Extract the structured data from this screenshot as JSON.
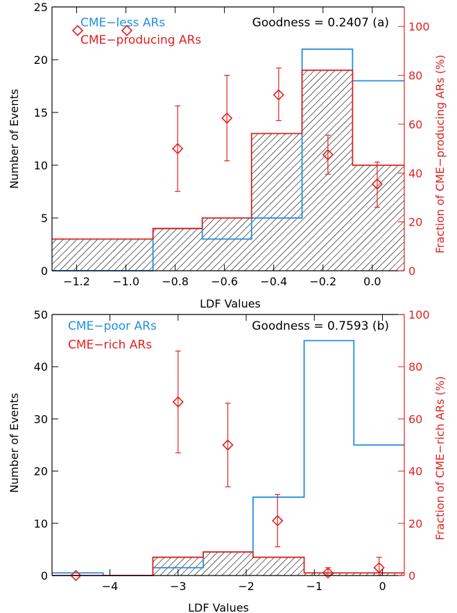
{
  "chart_data": [
    {
      "type": "bar",
      "panel_label": "(a)",
      "goodness_text": "Goodness = 0.2407 (a)",
      "xlabel": "LDF Values",
      "ylabel": "Number of Events",
      "y2label": "Fraction of CME−producing ARs (%)",
      "xlim": [
        -1.3,
        0.13
      ],
      "ylim": [
        0,
        25
      ],
      "y2lim": [
        0,
        108
      ],
      "xticks": [
        -1.2,
        -1.0,
        -0.8,
        -0.6,
        -0.4,
        -0.2,
        0.0
      ],
      "xtick_labels": [
        "−1.2",
        "−1.0",
        "−0.8",
        "−0.6",
        "−0.4",
        "−0.2",
        "0.0"
      ],
      "yticks": [
        0,
        5,
        10,
        15,
        20,
        25
      ],
      "y2ticks": [
        0,
        20,
        40,
        60,
        80,
        100
      ],
      "legend_placement": "top-left",
      "bin_edges": [
        -1.3,
        -0.89,
        -0.69,
        -0.49,
        -0.285,
        -0.08,
        0.13
      ],
      "series": [
        {
          "name": "CME−less ARs",
          "style": "step",
          "color": "#1f8fe0",
          "values": [
            0,
            4,
            3,
            5,
            21,
            18
          ]
        },
        {
          "name": "CME−producing ARs",
          "style": "step-hatched",
          "color": "#e02020",
          "values": [
            3,
            4,
            5,
            13,
            19,
            10
          ]
        },
        {
          "name": "Fraction",
          "style": "points",
          "axis": "right",
          "color": "#e02020",
          "x": [
            -0.79,
            -0.59,
            -0.38,
            -0.18,
            0.02
          ],
          "y": [
            50,
            62.5,
            72,
            47.5,
            35.5
          ],
          "err_low": [
            32.5,
            45,
            61.5,
            39.5,
            26
          ],
          "err_high": [
            67.5,
            80,
            83,
            55.5,
            44.5
          ]
        }
      ]
    },
    {
      "type": "bar",
      "panel_label": "(b)",
      "goodness_text": "Goodness = 0.7593 (b)",
      "xlabel": "LDF Values",
      "ylabel": "Number of Events",
      "y2label": "Fraction of CME−rich ARs (%)",
      "xlim": [
        -4.85,
        0.32
      ],
      "ylim": [
        0,
        50
      ],
      "y2lim": [
        0,
        100
      ],
      "xticks": [
        -4,
        -3,
        -2,
        -1,
        0
      ],
      "xtick_labels": [
        "−4",
        "−3",
        "−2",
        "−1",
        "0"
      ],
      "yticks": [
        0,
        10,
        20,
        30,
        40,
        50
      ],
      "y2ticks": [
        0,
        20,
        40,
        60,
        80,
        100
      ],
      "legend_placement": "top-left",
      "bin_edges": [
        -4.85,
        -4.1,
        -3.37,
        -2.63,
        -1.9,
        -1.15,
        -0.42,
        0.32
      ],
      "series": [
        {
          "name": "CME−poor ARs",
          "style": "step",
          "color": "#1f8fe0",
          "values": [
            0.5,
            0,
            1.5,
            4.5,
            15,
            45,
            25
          ]
        },
        {
          "name": "CME−rich ARs",
          "style": "step-hatched",
          "color": "#e02020",
          "values": [
            0,
            0,
            3.5,
            4.5,
            3.5,
            0.5,
            0.5
          ]
        },
        {
          "name": "Fraction",
          "style": "points",
          "axis": "right",
          "color": "#e02020",
          "x": [
            -4.5,
            -3.0,
            -2.27,
            -1.54,
            -0.8,
            -0.05
          ],
          "y": [
            0,
            66.5,
            50,
            21,
            1,
            3
          ],
          "err_low": [
            0,
            47,
            34,
            11,
            0,
            0
          ],
          "err_high": [
            0,
            86,
            66,
            31,
            3,
            7
          ]
        }
      ]
    }
  ]
}
